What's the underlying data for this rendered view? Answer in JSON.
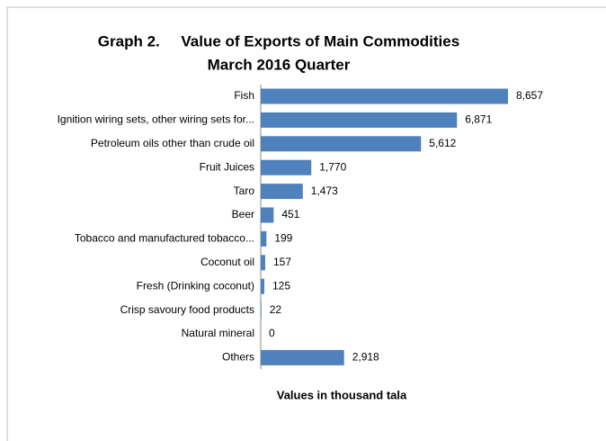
{
  "chart_data": {
    "type": "bar",
    "orientation": "horizontal",
    "title": "Graph 2.     Value of Exports of Main Commodities",
    "subtitle": "March 2016 Quarter",
    "x_label": "Values in thousand tala",
    "categories": [
      "Fish",
      "Ignition wiring sets, other wiring sets for...",
      "Petroleum oils other than crude oil",
      "Fruit Juices",
      "Taro",
      "Beer",
      "Tobacco and manufactured tobacco...",
      "Coconut oil",
      "Fresh (Drinking coconut)",
      "Crisp savoury food products",
      "Natural mineral",
      "Others"
    ],
    "values": [
      8657,
      6871,
      5612,
      1770,
      1473,
      451,
      199,
      157,
      125,
      22,
      0,
      2918
    ],
    "value_labels": [
      "8,657",
      "6,871",
      "5,612",
      "1,770",
      "1,473",
      "451",
      "199",
      "157",
      "125",
      "22",
      "0",
      "2,918"
    ],
    "color": "#4f81bd"
  }
}
